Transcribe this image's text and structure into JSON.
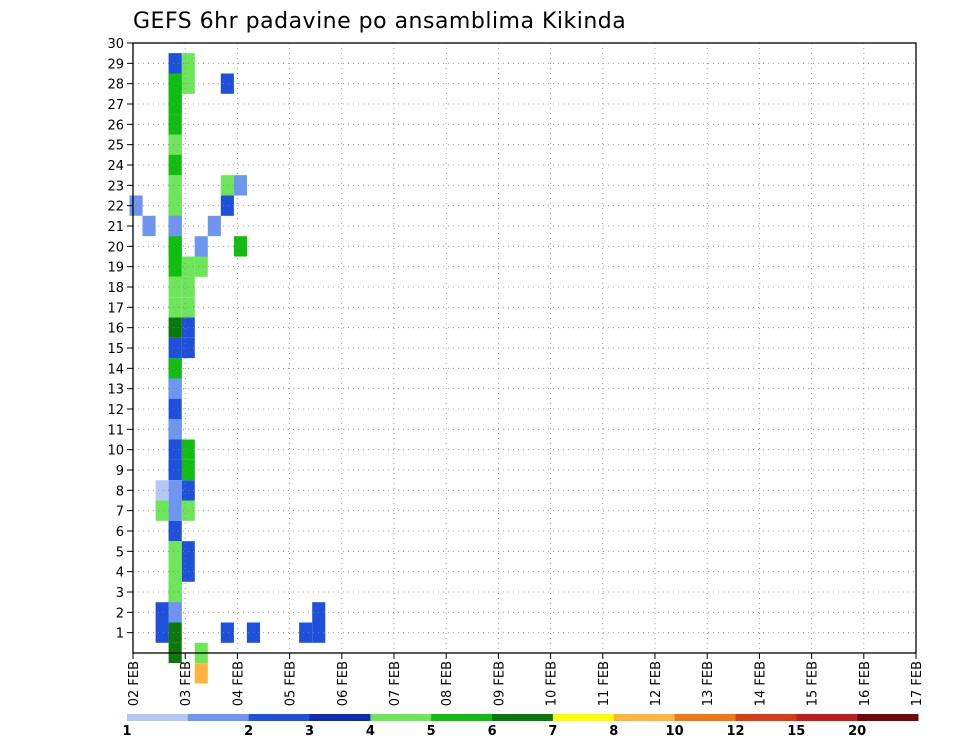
{
  "chart_data": {
    "type": "heatmap",
    "title": "GEFS 6hr padavine po ansamblima Kikinda",
    "xlabel": "",
    "ylabel": "",
    "x_tick_labels": [
      "02 FEB",
      "03 FEB",
      "04 FEB",
      "05 FEB",
      "06 FEB",
      "07 FEB",
      "08 FEB",
      "09 FEB",
      "10 FEB",
      "11 FEB",
      "12 FEB",
      "13 FEB",
      "14 FEB",
      "15 FEB",
      "16 FEB",
      "17 FEB"
    ],
    "y_tick_labels": [
      "1",
      "2",
      "3",
      "4",
      "5",
      "6",
      "7",
      "8",
      "9",
      "10",
      "11",
      "12",
      "13",
      "14",
      "15",
      "16",
      "17",
      "18",
      "19",
      "20",
      "21",
      "22",
      "23",
      "24",
      "25",
      "26",
      "27",
      "28",
      "29",
      "30"
    ],
    "grid": true,
    "time_step_hours": 6,
    "x_range": [
      "02 FEB",
      "17 FEB"
    ],
    "y_range": [
      0,
      30
    ],
    "legend": {
      "position": "bottom",
      "bins": [
        {
          "color": "#b4c8f5",
          "label": "1"
        },
        {
          "color": "#6e96f0",
          "label": "2"
        },
        {
          "color": "#1e50dc",
          "label": "3"
        },
        {
          "color": "#0a2db4",
          "label": "4"
        },
        {
          "color": "#6ee65a",
          "label": "5"
        },
        {
          "color": "#10be10",
          "label": "6"
        },
        {
          "color": "#0a780a",
          "label": "7"
        },
        {
          "color": "#ffff00",
          "label": "8"
        },
        {
          "color": "#ffb43c",
          "label": "10"
        },
        {
          "color": "#f07814",
          "label": "12"
        },
        {
          "color": "#dc3c14",
          "label": "15"
        },
        {
          "color": "#c01e1e",
          "label": "20"
        },
        {
          "color": "#6e0a0a",
          "label": ""
        }
      ]
    },
    "cells": [
      [
        1,
        8,
        0
      ],
      [
        1,
        7,
        4
      ],
      [
        6,
        1,
        2
      ],
      [
        8,
        1,
        2
      ],
      [
        12,
        1,
        2
      ],
      [
        13,
        1,
        2
      ],
      [
        13,
        2,
        2
      ],
      [
        4,
        -1,
        8
      ],
      [
        4,
        0,
        4
      ],
      [
        1,
        1,
        2
      ],
      [
        1,
        2,
        2
      ],
      [
        3,
        7,
        4
      ],
      [
        3,
        8,
        2
      ],
      [
        3,
        9,
        5
      ],
      [
        3,
        10,
        5
      ],
      [
        2,
        6,
        1
      ],
      [
        4,
        19,
        4
      ],
      [
        3,
        4,
        2
      ],
      [
        3,
        5,
        2
      ],
      [
        3,
        15,
        2
      ],
      [
        3,
        16,
        2
      ],
      [
        3,
        17,
        4
      ],
      [
        3,
        18,
        4
      ],
      [
        3,
        19,
        4
      ],
      [
        3,
        28,
        4
      ],
      [
        3,
        29,
        4
      ],
      [
        2,
        3,
        2
      ],
      [
        2,
        6,
        2
      ],
      [
        2,
        9,
        2
      ],
      [
        2,
        10,
        2
      ],
      [
        2,
        11,
        2
      ],
      [
        2,
        12,
        2
      ],
      [
        2,
        13,
        2
      ],
      [
        2,
        14,
        2
      ],
      [
        2,
        15,
        2
      ],
      [
        2,
        20,
        2
      ],
      [
        2,
        21,
        2
      ],
      [
        2,
        22,
        2
      ],
      [
        2,
        27,
        2
      ],
      [
        2,
        28,
        2
      ],
      [
        2,
        29,
        4
      ],
      [
        2,
        2,
        1
      ],
      [
        2,
        5,
        1
      ],
      [
        2,
        7,
        1
      ],
      [
        2,
        8,
        1
      ],
      [
        2,
        11,
        1
      ],
      [
        2,
        13,
        1
      ],
      [
        2,
        20,
        1
      ],
      [
        2,
        21,
        1
      ],
      [
        2,
        23,
        1
      ],
      [
        2,
        25,
        1
      ],
      [
        2,
        26,
        1
      ],
      [
        2,
        27,
        1
      ],
      [
        2,
        28,
        1
      ],
      [
        2,
        1,
        4
      ],
      [
        2,
        4,
        4
      ],
      [
        2,
        14,
        5
      ],
      [
        2,
        23,
        4
      ],
      [
        2,
        24,
        4
      ],
      [
        2,
        25,
        4
      ],
      [
        2,
        29,
        2
      ],
      [
        2,
        0,
        6
      ],
      [
        2,
        16,
        6
      ],
      [
        2,
        19,
        5
      ],
      [
        2,
        20,
        5
      ],
      [
        2,
        24,
        5
      ],
      [
        2,
        26,
        5
      ],
      [
        2,
        27,
        5
      ],
      [
        2,
        4,
        4
      ],
      [
        2,
        1,
        6
      ],
      [
        2,
        3,
        4
      ],
      [
        2,
        5,
        4
      ],
      [
        2,
        17,
        4
      ],
      [
        2,
        18,
        4
      ],
      [
        2,
        22,
        4
      ],
      [
        2,
        28,
        5
      ],
      [
        2,
        2,
        1
      ],
      [
        6,
        22,
        2
      ],
      [
        6,
        23,
        4
      ],
      [
        6,
        28,
        2
      ],
      [
        7,
        23,
        1
      ],
      [
        7,
        20,
        5
      ],
      [
        4,
        20,
        1
      ],
      [
        2,
        9,
        2
      ],
      [
        -1,
        22,
        1
      ],
      [
        0,
        21,
        1
      ],
      [
        5,
        21,
        1
      ]
    ],
    "series_columns": [
      {
        "column": 0,
        "x": "02 FEB 00Z"
      }
    ],
    "note_cells_format": "[time_step_index, member, color_bin_index]"
  }
}
